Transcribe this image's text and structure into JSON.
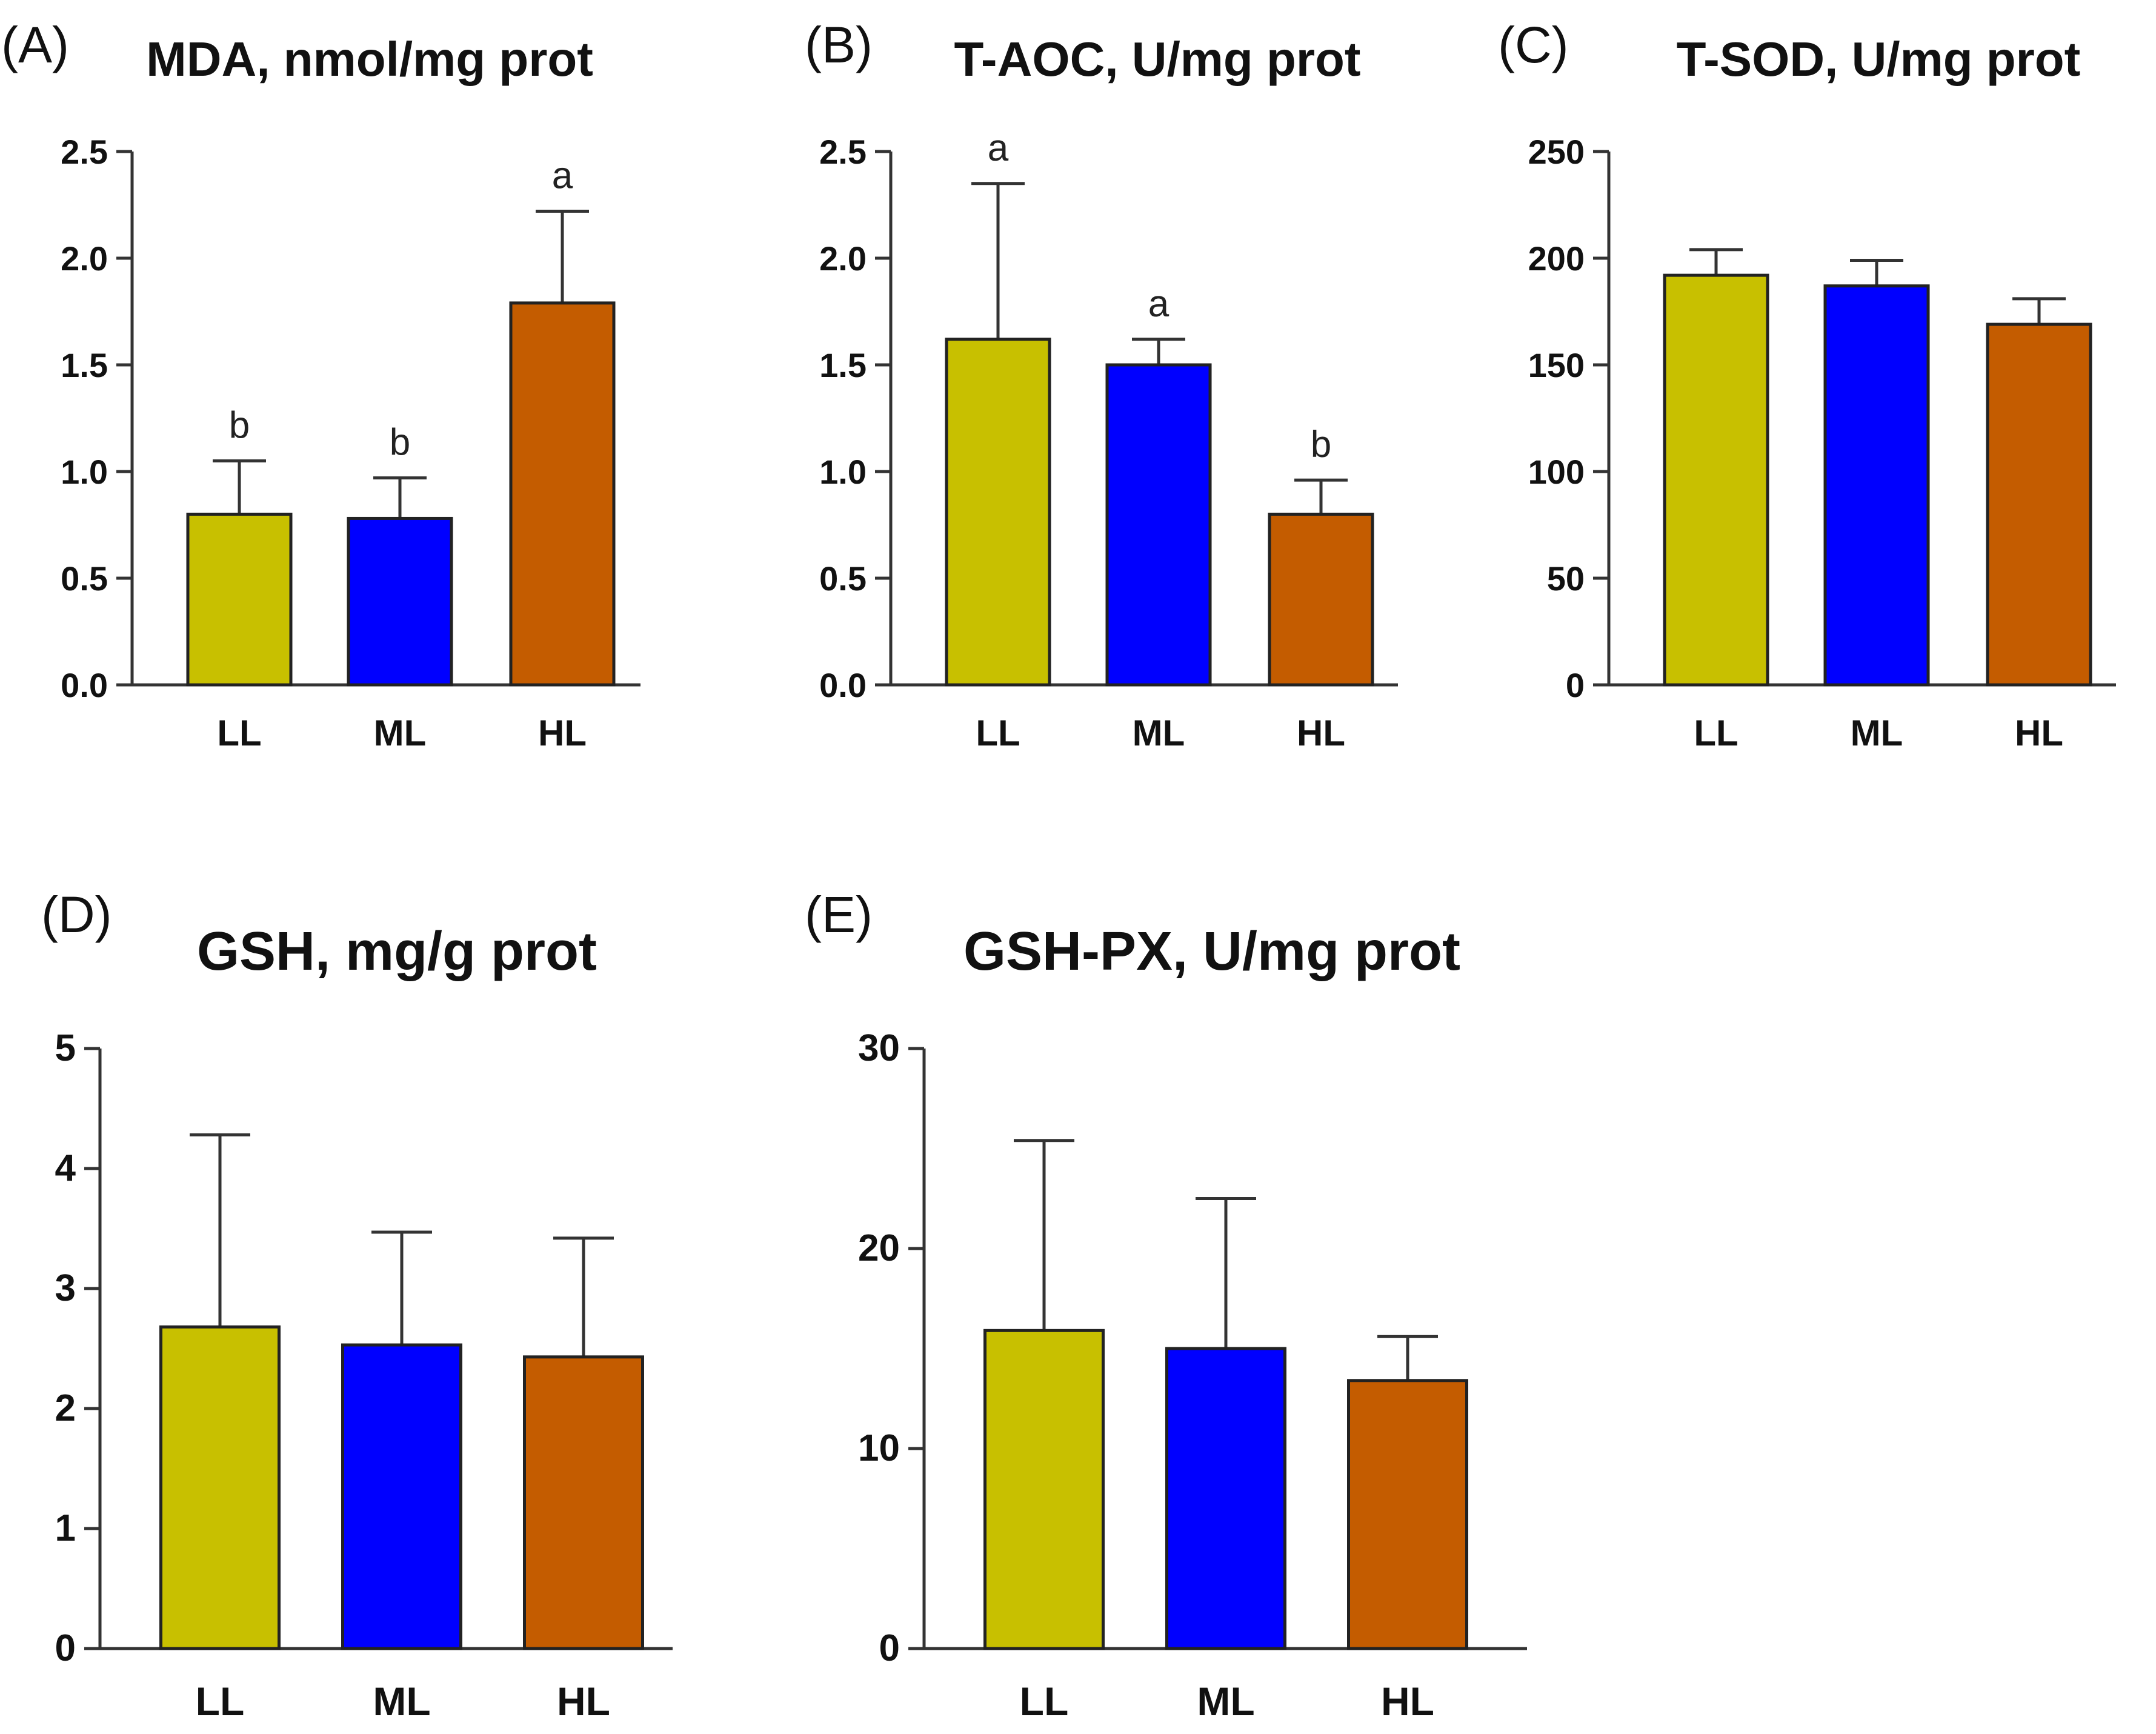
{
  "colors": {
    "LL": "#c8c000",
    "ML": "#0000ff",
    "HL": "#c45c00"
  },
  "chart_data": [
    {
      "type": "bar",
      "panel": "(A)",
      "title": "MDA, nmol/mg prot",
      "categories": [
        "LL",
        "ML",
        "HL"
      ],
      "values": [
        0.8,
        0.78,
        1.79
      ],
      "errors": [
        0.25,
        0.19,
        0.43
      ],
      "letters": [
        "b",
        "b",
        "a"
      ],
      "ylim": [
        0,
        2.5
      ],
      "yticks": [
        "0.0",
        "0.5",
        "1.0",
        "1.5",
        "2.0",
        "2.5"
      ],
      "xlabel": "",
      "ylabel": ""
    },
    {
      "type": "bar",
      "panel": "(B)",
      "title": "T-AOC, U/mg prot",
      "categories": [
        "LL",
        "ML",
        "HL"
      ],
      "values": [
        1.62,
        1.5,
        0.8
      ],
      "errors": [
        0.73,
        0.12,
        0.16
      ],
      "letters": [
        "a",
        "a",
        "b"
      ],
      "ylim": [
        0,
        2.5
      ],
      "yticks": [
        "0.0",
        "0.5",
        "1.0",
        "1.5",
        "2.0",
        "2.5"
      ],
      "xlabel": "",
      "ylabel": ""
    },
    {
      "type": "bar",
      "panel": "(C)",
      "title": "T-SOD, U/mg prot",
      "categories": [
        "LL",
        "ML",
        "HL"
      ],
      "values": [
        192,
        187,
        169
      ],
      "errors": [
        12,
        12,
        12
      ],
      "letters": [
        "",
        "",
        ""
      ],
      "ylim": [
        0,
        250
      ],
      "yticks": [
        "0",
        "50",
        "100",
        "150",
        "200",
        "250"
      ],
      "xlabel": "",
      "ylabel": ""
    },
    {
      "type": "bar",
      "panel": "(D)",
      "title": "GSH, mg/g prot",
      "categories": [
        "LL",
        "ML",
        "HL"
      ],
      "values": [
        2.68,
        2.53,
        2.43
      ],
      "errors": [
        1.6,
        0.94,
        0.99
      ],
      "letters": [
        "",
        "",
        ""
      ],
      "ylim": [
        0,
        5
      ],
      "yticks": [
        "0",
        "1",
        "2",
        "3",
        "4",
        "5"
      ],
      "xlabel": "",
      "ylabel": ""
    },
    {
      "type": "bar",
      "panel": "(E)",
      "title": "GSH-PX, U/mg prot",
      "categories": [
        "LL",
        "ML",
        "HL"
      ],
      "values": [
        15.9,
        15.0,
        13.4
      ],
      "errors": [
        9.5,
        7.5,
        2.2
      ],
      "letters": [
        "",
        "",
        ""
      ],
      "ylim": [
        0,
        30
      ],
      "yticks": [
        "0",
        "10",
        "20",
        "30"
      ],
      "xlabel": "",
      "ylabel": ""
    }
  ]
}
